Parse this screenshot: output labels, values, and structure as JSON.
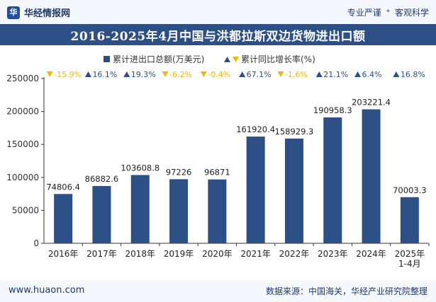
{
  "header": {
    "logo_mark": "华",
    "brand_name": "华经情报网",
    "slogan_left": "专业严谨",
    "slogan_sep": "•",
    "slogan_right": "客观科学"
  },
  "chart_data": {
    "type": "bar",
    "title": "2016-2025年4月中国与洪都拉斯双边货物进出口额",
    "categories": [
      "2016年",
      "2017年",
      "2018年",
      "2019年",
      "2020年",
      "2021年",
      "2022年",
      "2023年",
      "2024年",
      "2025年\n1-4月"
    ],
    "series": [
      {
        "name": "累计进出口总额(万美元)",
        "values": [
          74806.4,
          86882.6,
          103608.8,
          97226,
          96871,
          161920.4,
          158929.3,
          190958.3,
          203221.4,
          70003.3
        ],
        "value_labels": [
          "74806.4",
          "86882.6",
          "103608.8",
          "97226",
          "96871",
          "161920.4",
          "158929.3",
          "190958.3",
          "203221.4",
          "70003.3"
        ],
        "color": "#2c4f86"
      },
      {
        "name": "累计同比增长率(%)",
        "values": [
          -15.9,
          16.1,
          19.3,
          -6.2,
          -0.4,
          67.1,
          -1.6,
          21.1,
          6.4,
          16.8
        ],
        "value_labels": [
          "-15.9%",
          "16.1%",
          "19.3%",
          "-6.2%",
          "-0.4%",
          "67.1%",
          "-1.6%",
          "21.1%",
          "6.4%",
          "16.8%"
        ],
        "up_color": "#2c4f86",
        "down_color": "#f2b705"
      }
    ],
    "y_ticks": [
      "0",
      "50000",
      "100000",
      "150000",
      "200000",
      "250000"
    ],
    "ylim": [
      0,
      250000
    ],
    "grid": false,
    "legend_position": "top-center"
  },
  "footer": {
    "website": "www.huaon.com",
    "source": "数据来源：中国海关，华经产业研究院整理"
  }
}
